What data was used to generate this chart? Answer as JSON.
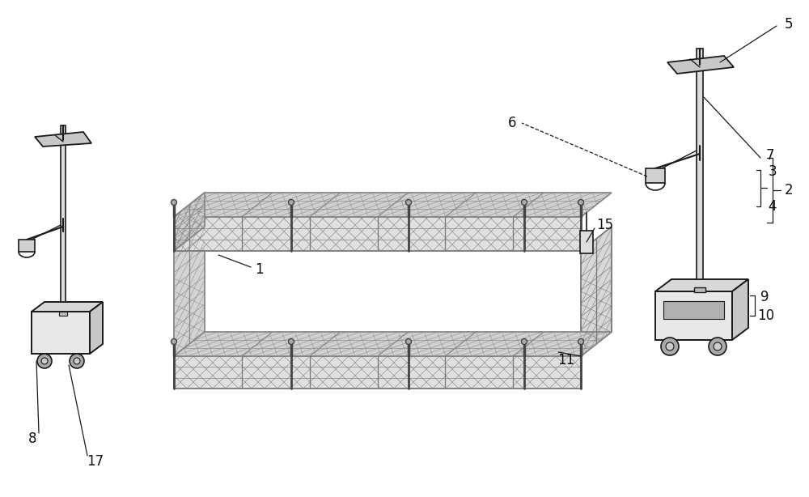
{
  "bg_color": "#ffffff",
  "line_color": "#1a1a1a",
  "lw_main": 1.4,
  "lw_thin": 0.6,
  "mesh_face": "#e2e2e2",
  "mesh_line": "#666666",
  "label_fontsize": 12,
  "figsize": [
    10.0,
    6.14
  ],
  "dpi": 100
}
